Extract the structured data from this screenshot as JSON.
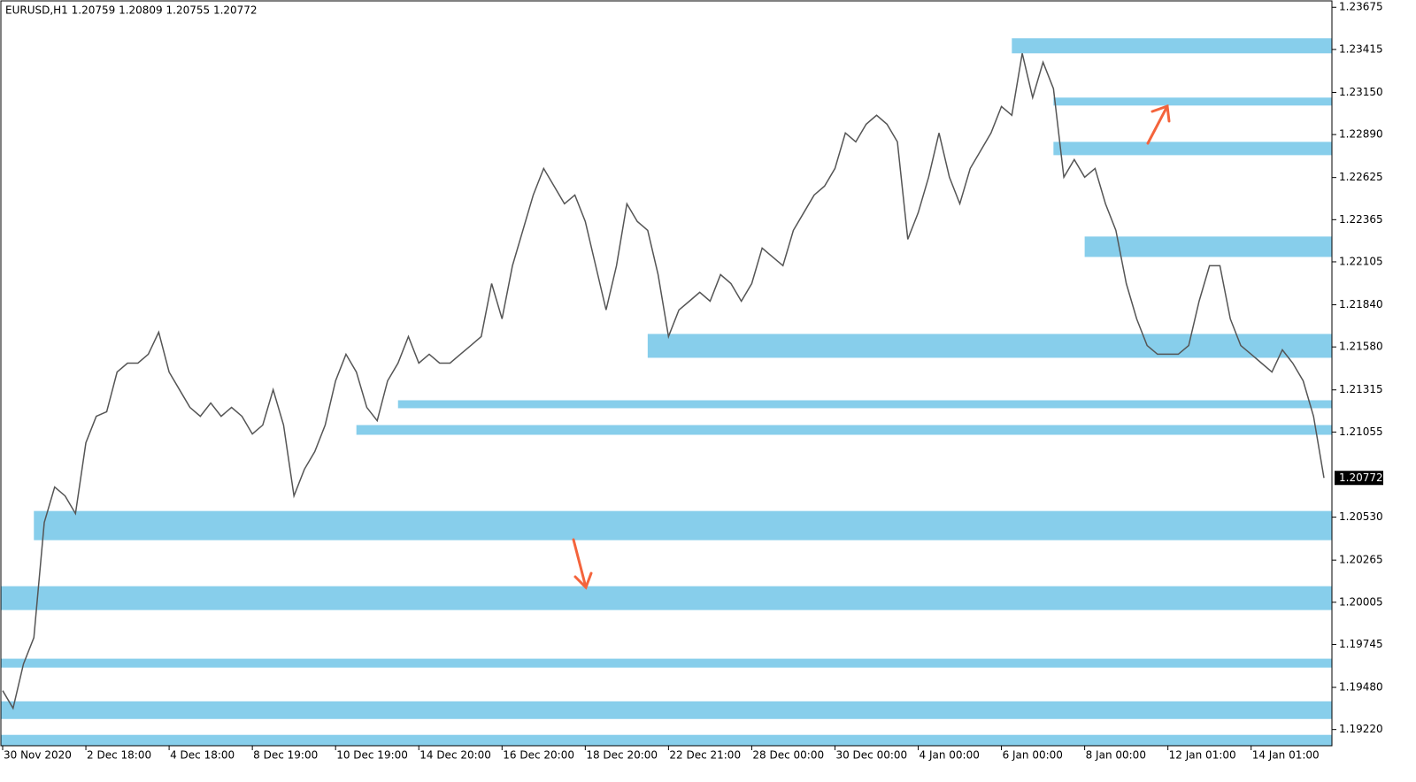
{
  "chart_data": {
    "type": "line",
    "title": "EURUSD,H1  1.20759 1.20809 1.20755 1.20772",
    "color": "#555555",
    "categories": [
      "30 Nov 2020",
      null,
      null,
      null,
      null,
      null,
      null,
      null,
      "2 Dec 18:00",
      null,
      null,
      null,
      null,
      null,
      null,
      null,
      "4 Dec 18:00",
      null,
      null,
      null,
      null,
      null,
      null,
      null,
      "8 Dec 19:00",
      null,
      null,
      null,
      null,
      null,
      null,
      null,
      "10 Dec 19:00",
      null,
      null,
      null,
      null,
      null,
      null,
      null,
      "14 Dec 20:00",
      null,
      null,
      null,
      null,
      null,
      null,
      null,
      "16 Dec 20:00",
      null,
      null,
      null,
      null,
      null,
      null,
      null,
      "18 Dec 20:00",
      null,
      null,
      null,
      null,
      null,
      null,
      null,
      "22 Dec 21:00",
      null,
      null,
      null,
      null,
      null,
      null,
      null,
      "28 Dec 00:00",
      null,
      null,
      null,
      null,
      null,
      null,
      null,
      "30 Dec 00:00",
      null,
      null,
      null,
      null,
      null,
      null,
      null,
      "4 Jan 00:00",
      null,
      null,
      null,
      null,
      null,
      null,
      null,
      "6 Jan 00:00",
      null,
      null,
      null,
      null,
      null,
      null,
      null,
      "8 Jan 00:00",
      null,
      null,
      null,
      null,
      null,
      null,
      null,
      "12 Jan 01:00",
      null,
      null,
      null,
      null,
      null,
      null,
      null,
      "14 Jan 01:00",
      null,
      null,
      null,
      null,
      null,
      null,
      null
    ],
    "values": [
      1.1946,
      1.19351,
      1.19624,
      1.19787,
      1.20497,
      1.20716,
      1.20661,
      1.20552,
      1.20989,
      1.21152,
      1.2118,
      1.21425,
      1.2148,
      1.2148,
      1.21535,
      1.21671,
      1.21425,
      1.21316,
      1.21207,
      1.21152,
      1.21234,
      1.21152,
      1.21207,
      1.21152,
      1.21043,
      1.21098,
      1.21316,
      1.21098,
      1.20661,
      1.20825,
      1.20934,
      1.21098,
      1.21371,
      1.21535,
      1.21425,
      1.21207,
      1.21125,
      1.21371,
      1.2148,
      1.21644,
      1.2148,
      1.21535,
      1.2148,
      1.2148,
      1.21535,
      1.21589,
      1.21644,
      1.21971,
      1.21753,
      1.22081,
      1.22299,
      1.22517,
      1.22681,
      1.22572,
      1.22463,
      1.22517,
      1.22354,
      1.22081,
      1.21808,
      1.22081,
      1.22463,
      1.22354,
      1.22299,
      1.22026,
      1.21644,
      1.21808,
      1.21862,
      1.21917,
      1.21862,
      1.22026,
      1.21971,
      1.21862,
      1.21971,
      1.2219,
      1.22135,
      1.22081,
      1.22299,
      1.22408,
      1.22517,
      1.22572,
      1.22681,
      1.229,
      1.22845,
      1.22954,
      1.23009,
      1.22954,
      1.22845,
      1.22244,
      1.22408,
      1.22627,
      1.229,
      1.22627,
      1.22463,
      1.22681,
      1.2279,
      1.229,
      1.23063,
      1.23009,
      1.23391,
      1.23118,
      1.23336,
      1.23173,
      1.22627,
      1.22736,
      1.22627,
      1.22681,
      1.22463,
      1.22299,
      1.21971,
      1.21753,
      1.21589,
      1.21535,
      1.21535,
      1.21535,
      1.21589,
      1.21862,
      1.22081,
      1.22081,
      1.21753,
      1.21589,
      1.21535,
      1.2148,
      1.21425,
      1.21562,
      1.2148,
      1.21371,
      1.21152,
      1.20772
    ],
    "last_price": 1.20772,
    "ylim": [
      1.1912,
      1.2372
    ],
    "yticks": [
      1.23675,
      1.23415,
      {
        "value": 1.2315,
        "label": "1.23150"
      },
      {
        "value": 1.2289,
        "label": "1.22890"
      },
      1.22625,
      1.22365,
      1.22105,
      {
        "value": 1.2184,
        "label": "1.21840"
      },
      {
        "value": 1.2158,
        "label": "1.21580"
      },
      1.21315,
      1.21055,
      {
        "value": 1.2053,
        "label": "1.20530"
      },
      1.20265,
      1.20005,
      1.19745,
      {
        "value": 1.1948,
        "label": "1.19480"
      },
      {
        "value": 1.1922,
        "label": "1.19220"
      }
    ],
    "zone_color": "#87ceeb",
    "zones": [
      {
        "from": 97,
        "low": 1.23391,
        "high": 1.23484
      },
      {
        "from": 101,
        "low": 1.23069,
        "high": 1.23118
      },
      {
        "from": 101,
        "low": 1.22763,
        "high": 1.22845
      },
      {
        "from": 104,
        "low": 1.22135,
        "high": 1.22261
      },
      {
        "from": 62,
        "low": 1.21513,
        "high": 1.2166
      },
      {
        "from": 38,
        "low": 1.21202,
        "high": 1.21251
      },
      {
        "from": 34,
        "low": 1.21038,
        "high": 1.21098
      },
      {
        "from": 3,
        "low": 1.20388,
        "high": 1.20568
      },
      {
        "from": 0,
        "low": 1.19957,
        "high": 1.20104
      },
      {
        "from": 0,
        "low": 1.19602,
        "high": 1.19657
      },
      {
        "from": 0,
        "low": 1.19285,
        "high": 1.19394
      },
      {
        "from": 0,
        "low": 1.19122,
        "high": 1.19187
      }
    ]
  }
}
